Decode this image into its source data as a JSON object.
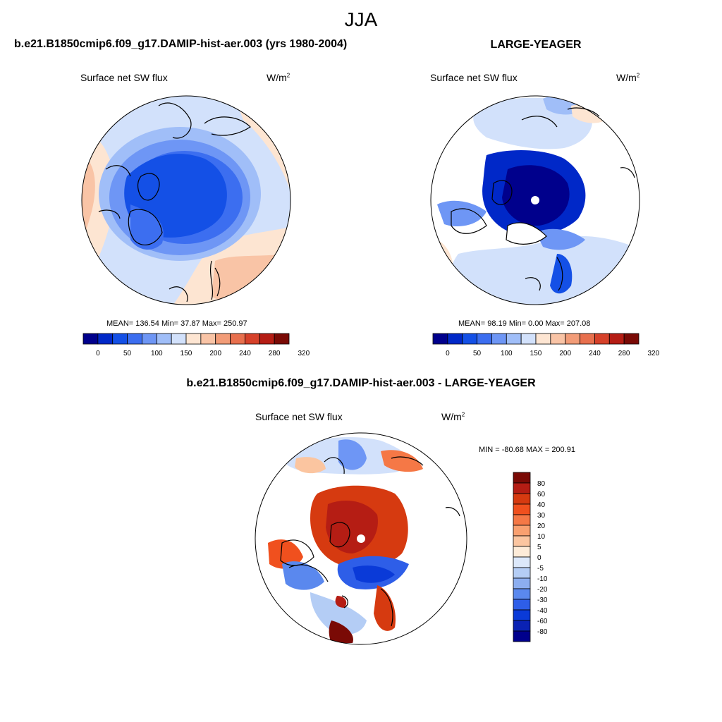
{
  "title": "JJA",
  "panels": [
    {
      "heading": "b.e21.B1850cmip6.f09_g17.DAMIP-hist-aer.003 (yrs 1980-2004)",
      "variable": "Surface net SW flux",
      "units": "W/m",
      "units_sup": "2",
      "stats": "MEAN= 136.54  Min=  37.87  Max= 250.97",
      "colorbar_labels": [
        "0",
        "50",
        "100",
        "150",
        "200",
        "240",
        "280",
        "320"
      ]
    },
    {
      "heading": "LARGE-YEAGER",
      "variable": "Surface net SW flux",
      "units": "W/m",
      "units_sup": "2",
      "stats": "MEAN=  98.19  Min=   0.00  Max= 207.08",
      "colorbar_labels": [
        "0",
        "50",
        "100",
        "150",
        "200",
        "240",
        "280",
        "320"
      ]
    },
    {
      "heading": "b.e21.B1850cmip6.f09_g17.DAMIP-hist-aer.003 - LARGE-YEAGER",
      "variable": "Surface net SW flux",
      "units": "W/m",
      "units_sup": "2",
      "stats": "MIN = -80.68 MAX = 200.91",
      "colorbar_labels": [
        "80",
        "60",
        "40",
        "30",
        "20",
        "10",
        "5",
        "0",
        "-5",
        "-10",
        "-20",
        "-30",
        "-40",
        "-60",
        "-80"
      ]
    }
  ],
  "colors": {
    "abs_scale": [
      "#00008c",
      "#0028c8",
      "#1450e6",
      "#3c6ef0",
      "#6e96f5",
      "#a0bef8",
      "#d2e1fb",
      "#fde5d2",
      "#f9c4a6",
      "#f29c78",
      "#e8704e",
      "#d6412a",
      "#b51d14",
      "#7a0a05"
    ],
    "diff_scale": [
      "#7a0a05",
      "#b51d14",
      "#d63a10",
      "#f0501e",
      "#f57846",
      "#f9a070",
      "#fbc5a0",
      "#fdebd8",
      "#dce8fa",
      "#b4cdf5",
      "#8caef0",
      "#5a88ee",
      "#2e5ee8",
      "#0a3ad8",
      "#0a22b4",
      "#00008c"
    ]
  }
}
